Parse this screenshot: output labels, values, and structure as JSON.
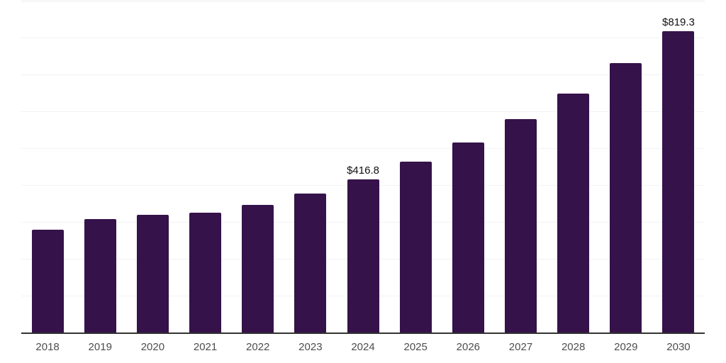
{
  "chart_data": {
    "type": "bar",
    "title": "",
    "xlabel": "",
    "ylabel": "",
    "categories": [
      "2018",
      "2019",
      "2020",
      "2021",
      "2022",
      "2023",
      "2024",
      "2025",
      "2026",
      "2027",
      "2028",
      "2029",
      "2030"
    ],
    "values": [
      281,
      310,
      321,
      327,
      348,
      379,
      416.8,
      465,
      517,
      581,
      650,
      733,
      819.3
    ],
    "bar_labels": [
      "",
      "",
      "",
      "",
      "",
      "",
      "$416.8",
      "",
      "",
      "",
      "",
      "",
      "$819.3"
    ],
    "ylim": [
      0,
      900
    ],
    "gridline_step": 100,
    "grid": true,
    "legend": "none",
    "y_tick_labels_visible": false,
    "colors": {
      "bar": "#351249",
      "axis_line": "#333333",
      "gridline": "#f2f2f2",
      "top_gridline": "#ececec",
      "tick_label": "#4d4d4d",
      "value_label": "#111111",
      "background": "#ffffff"
    }
  }
}
